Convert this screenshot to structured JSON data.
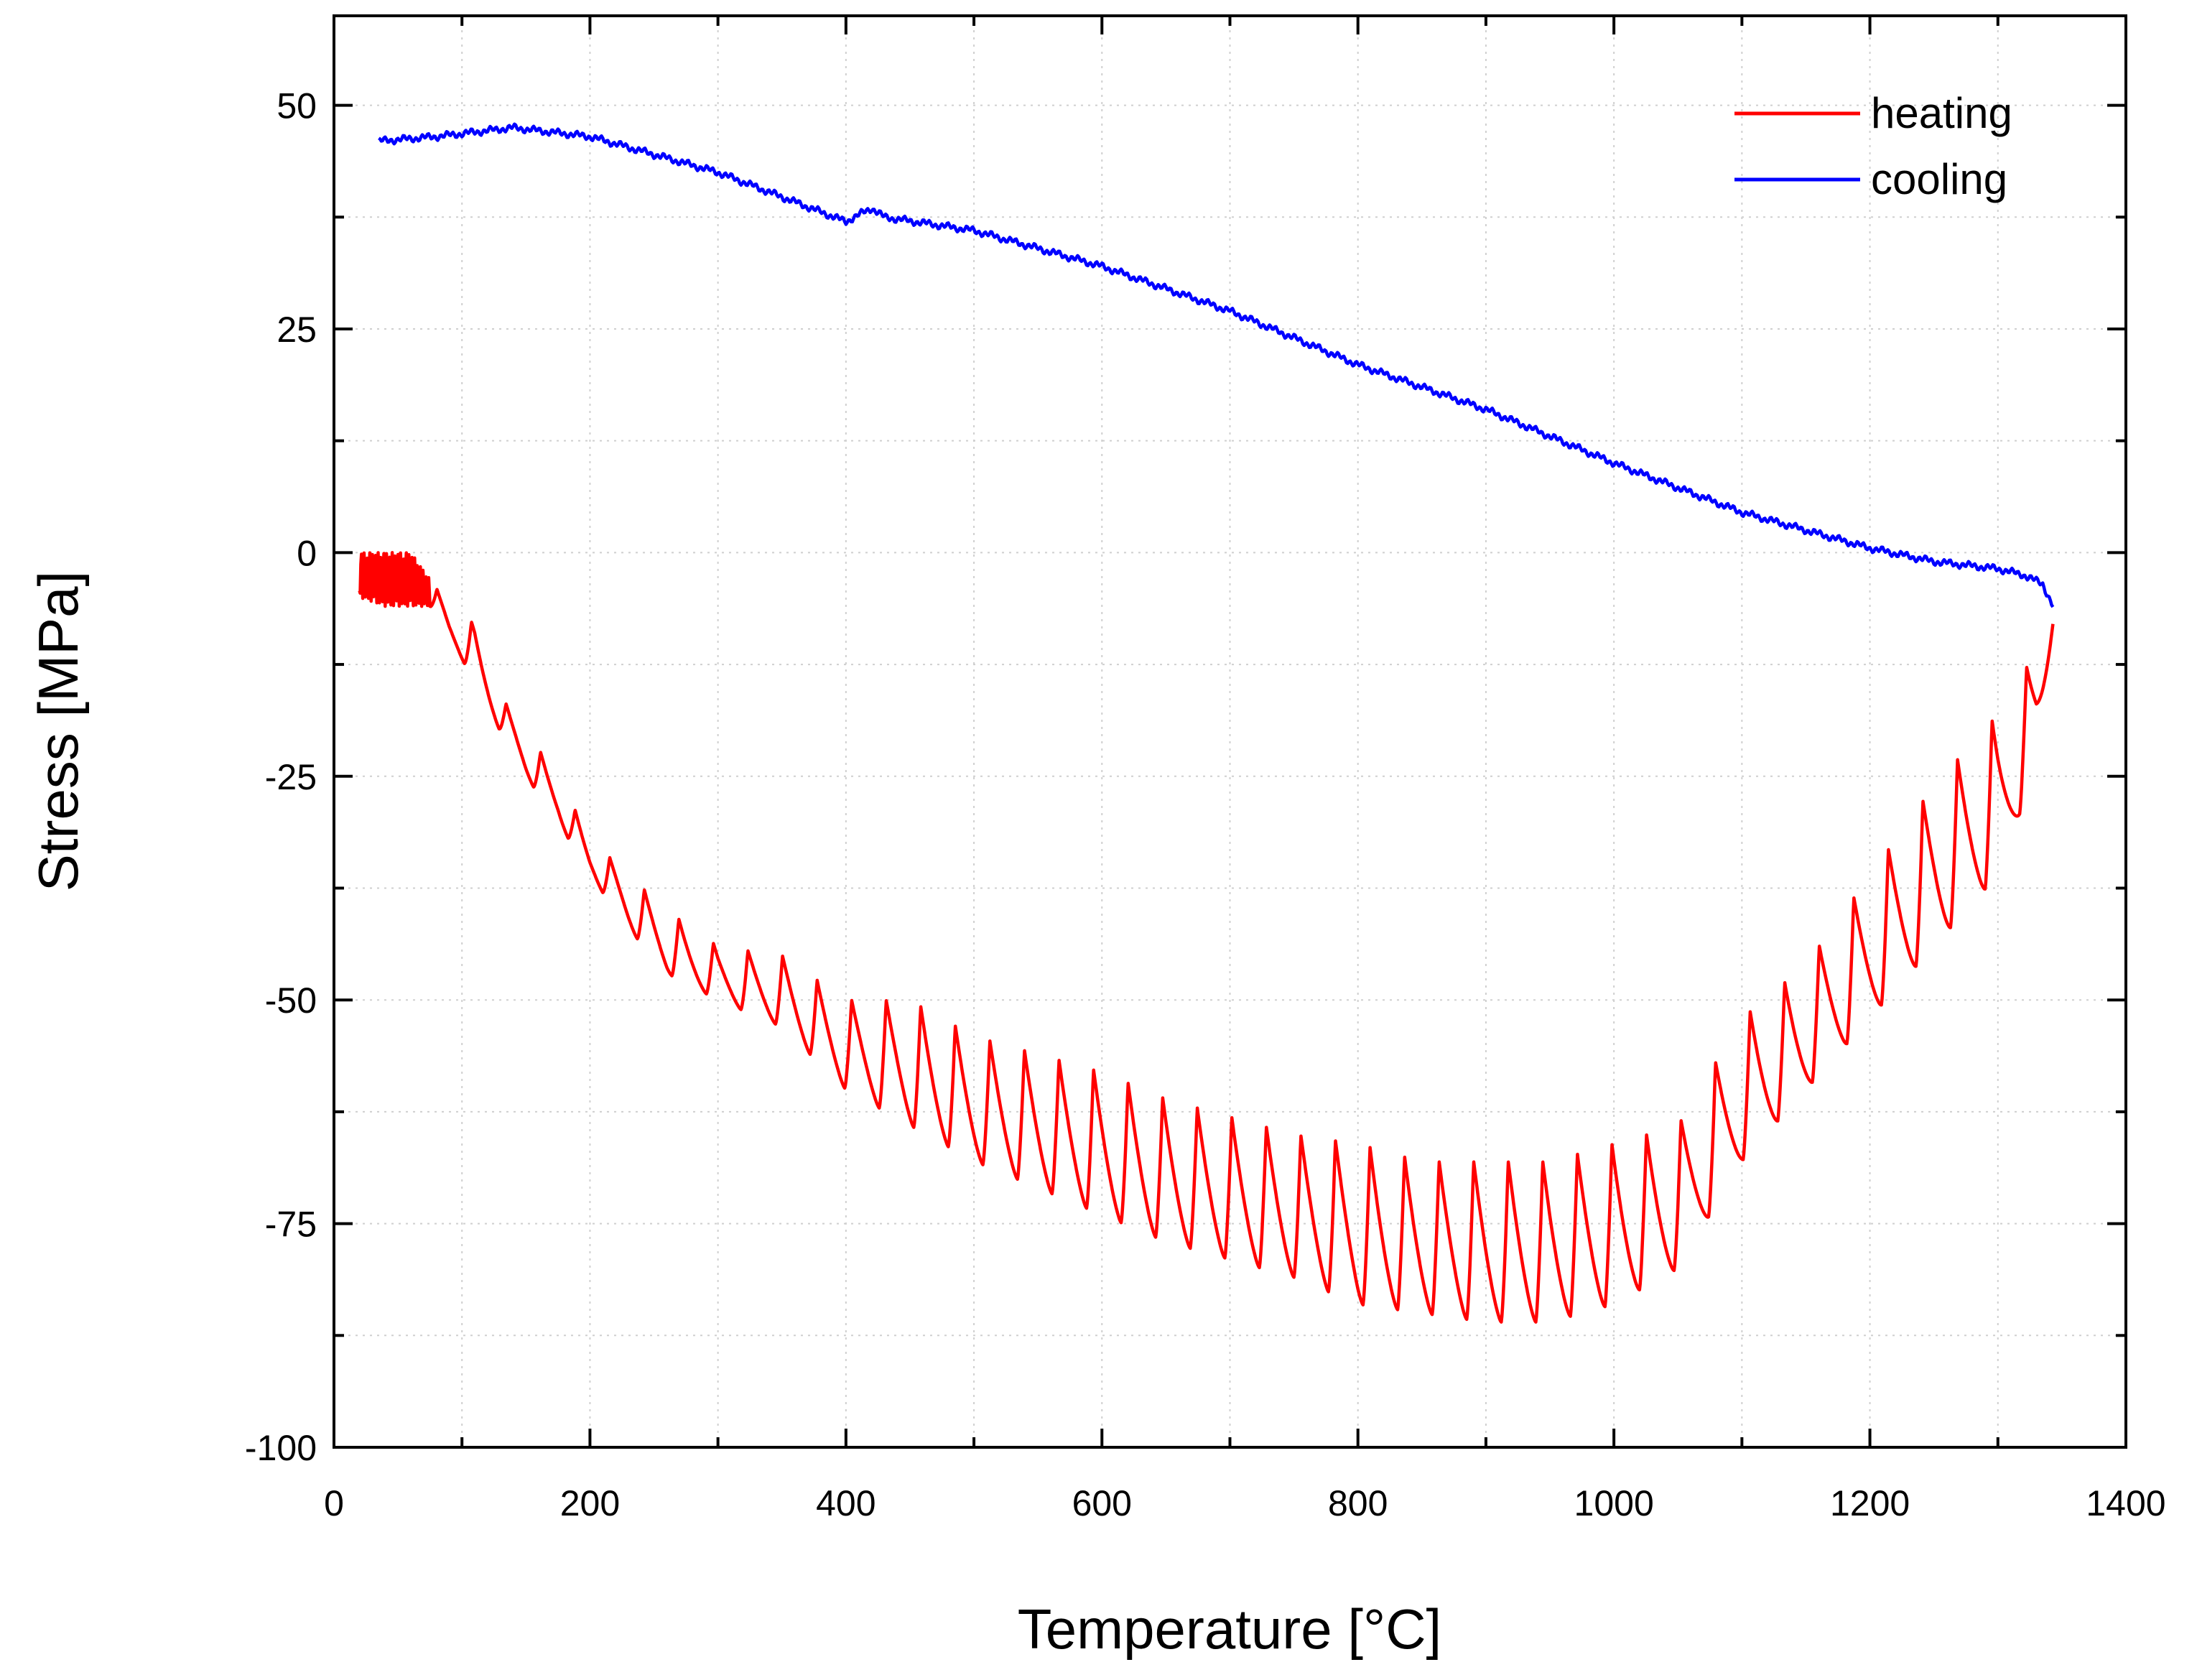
{
  "chart_data": {
    "type": "line",
    "title": "",
    "xlabel": "Temperature [°C]",
    "ylabel": "Stress [MPa]",
    "xlim": [
      0,
      1400
    ],
    "ylim": [
      -100,
      60
    ],
    "xticks": [
      0,
      200,
      400,
      600,
      800,
      1000,
      1200,
      1400
    ],
    "yticks": [
      -100,
      -75,
      -50,
      -25,
      0,
      25,
      50
    ],
    "minor_x_step": 100,
    "minor_y_step": 12.5,
    "grid": true,
    "legend": {
      "position": "top-right",
      "entries": [
        "heating",
        "cooling"
      ]
    },
    "series": [
      {
        "name": "heating",
        "color": "#ff0000",
        "oscillation": "periodic sawtooth dips superimposed on trend, period ~27 °C",
        "x": [
          20,
          40,
          60,
          75,
          90,
          110,
          130,
          150,
          175,
          200,
          230,
          260,
          300,
          350,
          400,
          450,
          500,
          550,
          600,
          650,
          700,
          750,
          800,
          850,
          900,
          950,
          1000,
          1050,
          1100,
          1150,
          1200,
          1250,
          1300,
          1330,
          1343
        ],
        "y_upper": [
          0,
          0,
          0,
          -3,
          -6,
          -8,
          -16,
          -20,
          -25,
          -32,
          -36,
          -40,
          -44,
          -45,
          -50,
          -50,
          -54,
          -56,
          -58,
          -61,
          -63,
          -65,
          -66,
          -68,
          -68,
          -68,
          -66,
          -64,
          -52,
          -46,
          -36,
          -26,
          -18,
          -11,
          -6
        ],
        "y_lower": [
          -5,
          -6,
          -6,
          -6,
          -10,
          -14,
          -20,
          -25,
          -30,
          -36,
          -42,
          -47,
          -50,
          -53,
          -60,
          -64,
          -68,
          -71,
          -74,
          -77,
          -79,
          -81,
          -84,
          -85,
          -86,
          -86,
          -84,
          -80,
          -68,
          -60,
          -52,
          -44,
          -36,
          -24,
          -8
        ]
      },
      {
        "name": "cooling",
        "color": "#0000ff",
        "x": [
          35,
          80,
          140,
          200,
          300,
          400,
          420,
          430,
          500,
          600,
          700,
          800,
          900,
          1000,
          1100,
          1200,
          1250,
          1300,
          1320,
          1335,
          1343
        ],
        "y": [
          46,
          46.5,
          47.5,
          46.5,
          42.5,
          37,
          38.5,
          37.5,
          36,
          32,
          27,
          21,
          16,
          10,
          4.5,
          0.5,
          -1,
          -1.8,
          -2.5,
          -3.5,
          -6
        ]
      }
    ]
  }
}
